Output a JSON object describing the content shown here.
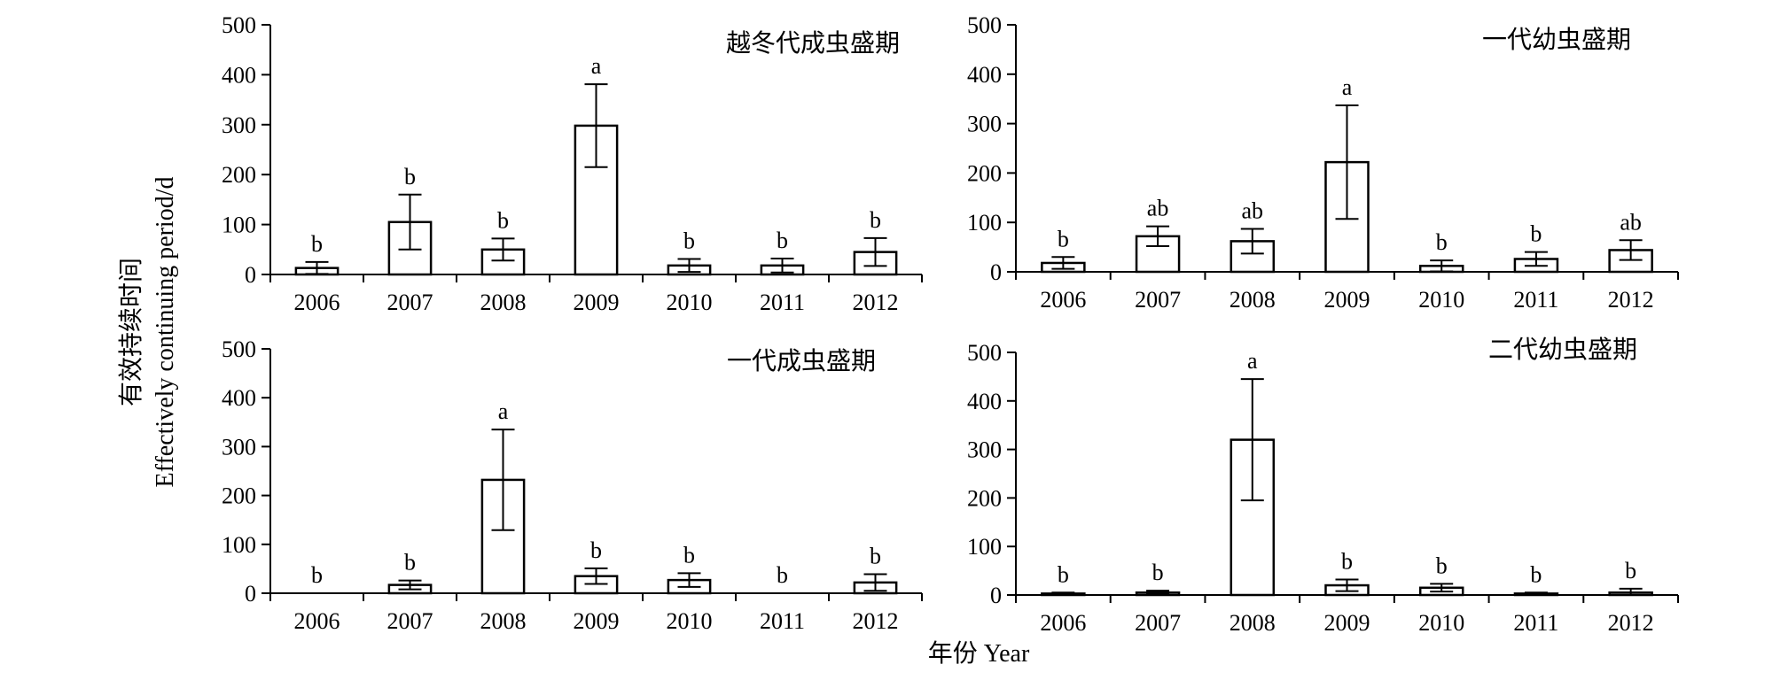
{
  "figure": {
    "ylabel_cn": "有效持续时间",
    "ylabel_en": "Effectively continuing period/d",
    "xlabel": "年份 Year"
  },
  "chart_data": [
    {
      "type": "bar",
      "title": "越冬代成虫盛期",
      "categories": [
        "2006",
        "2007",
        "2008",
        "2009",
        "2010",
        "2011",
        "2012"
      ],
      "values": [
        13,
        105,
        50,
        298,
        18,
        18,
        45
      ],
      "error": [
        12,
        55,
        22,
        83,
        13,
        14,
        28
      ],
      "labels": [
        "b",
        "b",
        "b",
        "a",
        "b",
        "b",
        "b"
      ],
      "ylim": [
        0,
        500
      ],
      "yticks": [
        "0",
        "100",
        "200",
        "300",
        "400",
        "500"
      ]
    },
    {
      "type": "bar",
      "title": "一代幼虫盛期",
      "categories": [
        "2006",
        "2007",
        "2008",
        "2009",
        "2010",
        "2011",
        "2012"
      ],
      "values": [
        18,
        72,
        62,
        222,
        12,
        26,
        44
      ],
      "error": [
        12,
        20,
        25,
        115,
        11,
        14,
        20
      ],
      "labels": [
        "b",
        "ab",
        "ab",
        "a",
        "b",
        "b",
        "ab"
      ],
      "ylim": [
        0,
        500
      ],
      "yticks": [
        "0",
        "100",
        "200",
        "300",
        "400",
        "500"
      ]
    },
    {
      "type": "bar",
      "title": "一代成虫盛期",
      "categories": [
        "2006",
        "2007",
        "2008",
        "2009",
        "2010",
        "2011",
        "2012"
      ],
      "values": [
        0,
        17,
        232,
        35,
        27,
        0,
        22
      ],
      "error": [
        0,
        9,
        103,
        16,
        14,
        0,
        17
      ],
      "labels": [
        "b",
        "b",
        "a",
        "b",
        "b",
        "b",
        "b"
      ],
      "ylim": [
        0,
        500
      ],
      "yticks": [
        "0",
        "100",
        "200",
        "300",
        "400",
        "500"
      ]
    },
    {
      "type": "bar",
      "title": "二代幼虫盛期",
      "categories": [
        "2006",
        "2007",
        "2008",
        "2009",
        "2010",
        "2011",
        "2012"
      ],
      "values": [
        3,
        5,
        320,
        20,
        15,
        3,
        5
      ],
      "error": [
        2,
        4,
        125,
        12,
        8,
        2,
        8
      ],
      "labels": [
        "b",
        "b",
        "a",
        "b",
        "b",
        "b",
        "b"
      ],
      "ylim": [
        0,
        500
      ],
      "yticks": [
        "0",
        "100",
        "200",
        "300",
        "400",
        "500"
      ]
    }
  ]
}
